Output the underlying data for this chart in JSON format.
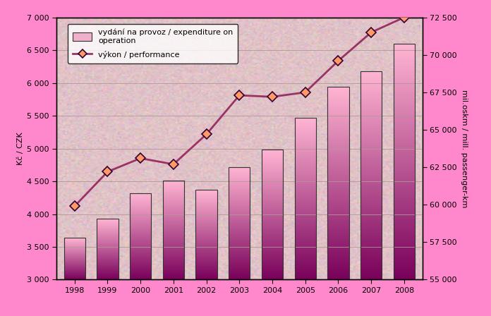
{
  "years": [
    1998,
    1999,
    2000,
    2001,
    2002,
    2003,
    2004,
    2005,
    2006,
    2007,
    2008
  ],
  "bar_values": [
    3640,
    3930,
    4320,
    4510,
    4370,
    4720,
    4980,
    5470,
    5940,
    6180,
    6600
  ],
  "line_values": [
    59900,
    62200,
    63100,
    62700,
    64700,
    67300,
    67200,
    67500,
    69600,
    71500,
    72500
  ],
  "bar_color_top": "#ffb8d8",
  "bar_color_bottom": "#7a0060",
  "line_color": "#993366",
  "marker_facecolor": "#ff9966",
  "marker_edgecolor": "#330033",
  "plot_bg": "#e8c8cc",
  "outer_bg": "#ff88cc",
  "ylabel_left": "Kč / CZK",
  "ylabel_right": "mil.oskm / mill. passenger-km",
  "ylim_left": [
    3000,
    7000
  ],
  "ylim_right": [
    55000,
    72500
  ],
  "yticks_left": [
    3000,
    3500,
    4000,
    4500,
    5000,
    5500,
    6000,
    6500,
    7000
  ],
  "yticks_right": [
    55000,
    57500,
    60000,
    62500,
    65000,
    67500,
    70000,
    72500
  ],
  "legend_bar_label": "vydání na provoz / expenditure on\noperation",
  "legend_line_label": "výkon / performance",
  "tick_fontsize": 8,
  "label_fontsize": 8
}
